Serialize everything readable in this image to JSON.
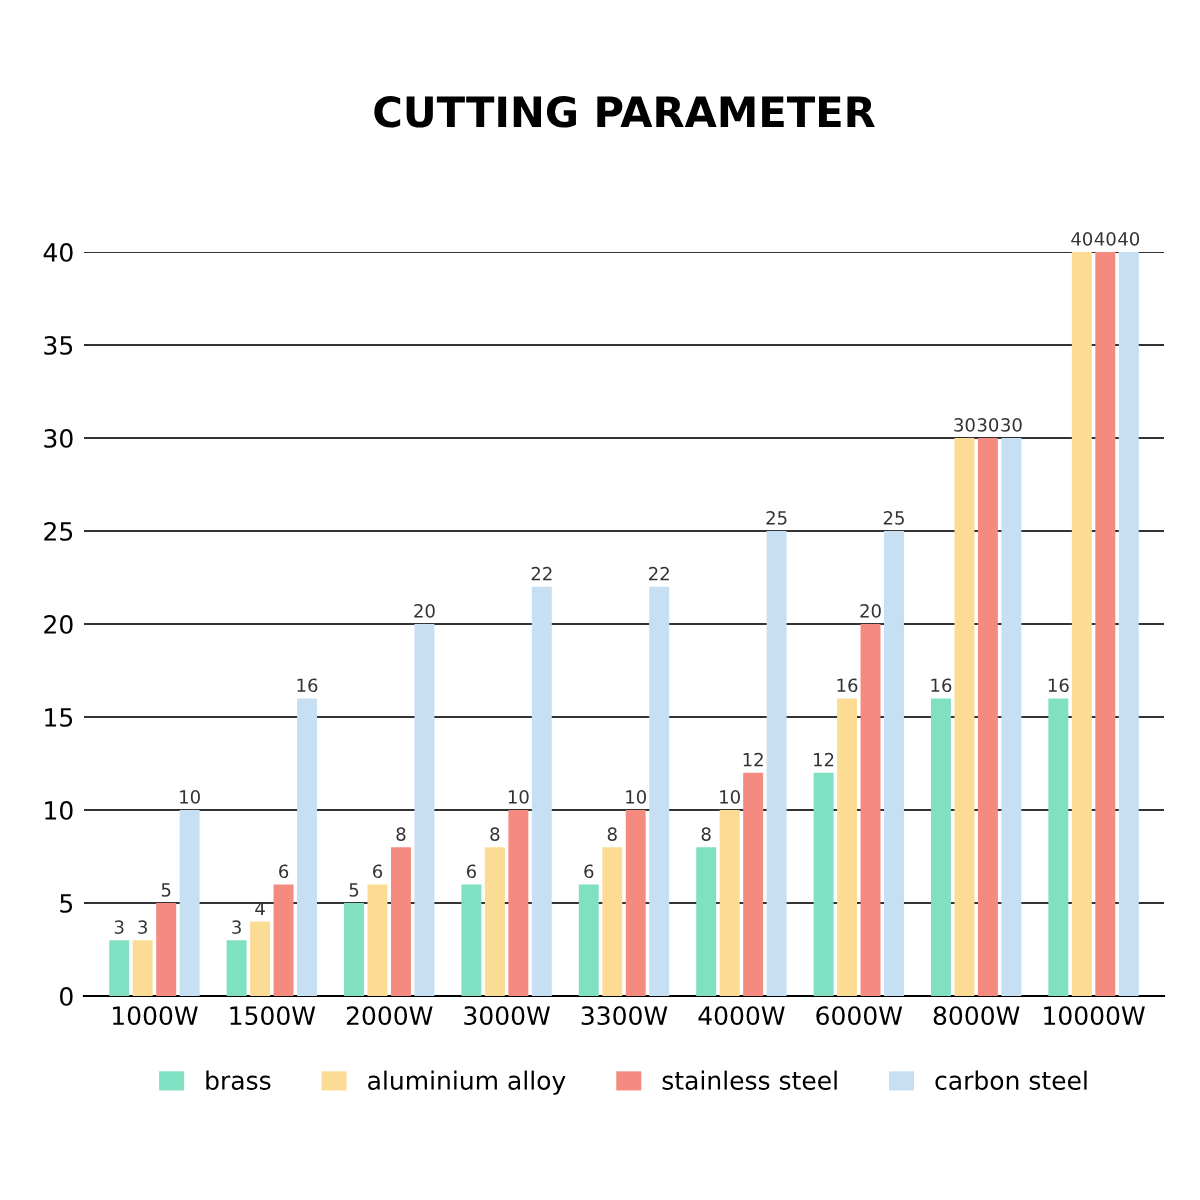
{
  "chart_data": {
    "type": "bar",
    "title": "CUTTING PARAMETER",
    "categories": [
      "1000W",
      "1500W",
      "2000W",
      "3000W",
      "3300W",
      "4000W",
      "6000W",
      "8000W",
      "10000W"
    ],
    "series": [
      {
        "name": "brass",
        "color": "#80e0c2",
        "values": [
          3,
          3,
          5,
          6,
          6,
          8,
          12,
          16,
          16
        ]
      },
      {
        "name": "aluminium alloy",
        "color": "#fcdc95",
        "values": [
          3,
          4,
          6,
          8,
          8,
          10,
          16,
          30,
          40
        ]
      },
      {
        "name": "stainless steel",
        "color": "#f48a80",
        "values": [
          5,
          6,
          8,
          10,
          10,
          12,
          20,
          30,
          40
        ]
      },
      {
        "name": "carbon steel",
        "color": "#c7dff2",
        "values": [
          10,
          16,
          20,
          22,
          22,
          25,
          25,
          30,
          40
        ]
      }
    ],
    "ylim": [
      0,
      40
    ],
    "yticks": [
      0,
      5,
      10,
      15,
      20,
      25,
      30,
      35,
      40
    ],
    "grid": "y",
    "legend": "bottom",
    "data_labels": true
  }
}
